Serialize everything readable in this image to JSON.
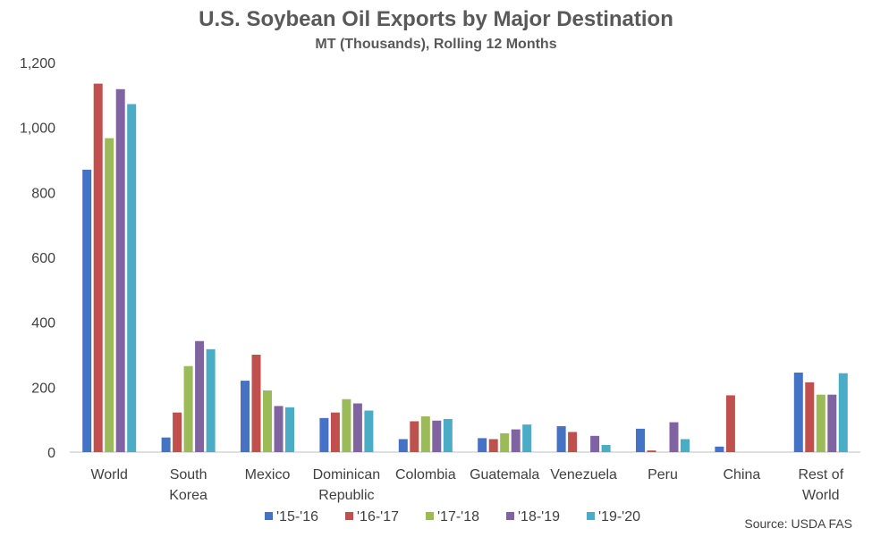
{
  "chart_data": {
    "type": "bar",
    "title": "U.S. Soybean Oil Exports by Major Destination",
    "subtitle": "MT (Thousands), Rolling 12 Months",
    "categories": [
      [
        "World"
      ],
      [
        "South",
        "Korea"
      ],
      [
        "Mexico"
      ],
      [
        "Dominican",
        "Republic"
      ],
      [
        "Colombia"
      ],
      [
        "Guatemala"
      ],
      [
        "Venezuela"
      ],
      [
        "Peru"
      ],
      [
        "China"
      ],
      [
        "Rest of",
        "World"
      ]
    ],
    "series": [
      {
        "name": "'15-'16",
        "color": "#4472C4",
        "values": [
          870,
          45,
          220,
          105,
          40,
          43,
          80,
          72,
          17,
          245
        ]
      },
      {
        "name": "'16-'17",
        "color": "#C0504D",
        "values": [
          1135,
          122,
          300,
          122,
          95,
          40,
          62,
          5,
          175,
          215
        ]
      },
      {
        "name": "'17-'18",
        "color": "#9BBB59",
        "values": [
          967,
          265,
          190,
          163,
          110,
          58,
          0,
          0,
          0,
          177
        ]
      },
      {
        "name": "'18-'19",
        "color": "#8064A2",
        "values": [
          1118,
          342,
          142,
          150,
          97,
          70,
          50,
          92,
          0,
          177
        ]
      },
      {
        "name": "'19-'20",
        "color": "#4BACC6",
        "values": [
          1072,
          317,
          138,
          128,
          102,
          85,
          22,
          40,
          0,
          243
        ]
      }
    ],
    "yticks": [
      "0",
      "200",
      "400",
      "600",
      "800",
      "1,000",
      "1,200"
    ],
    "ylim": [
      0,
      1200
    ],
    "grid": false,
    "legend_position": "bottom",
    "source": "Source: USDA FAS"
  }
}
